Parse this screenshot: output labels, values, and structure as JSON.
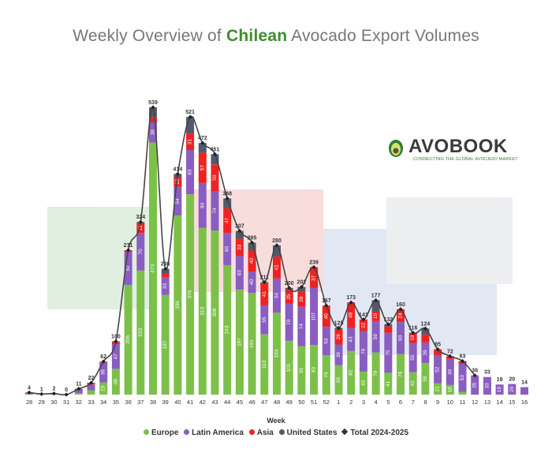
{
  "title": {
    "prefix": "Weekly Overview of ",
    "highlight": "Chilean",
    "suffix": " Avocado Export Volumes"
  },
  "logo": {
    "brand": "AVOBOOK",
    "tagline": "CONNECTING THE GLOBAL AVOCADO MARKET"
  },
  "colors": {
    "europe": "#7cc04a",
    "latin_america": "#8a5dc0",
    "asia": "#ee2222",
    "united_states": "#4f5a6e",
    "total": "#444444"
  },
  "chart_data": {
    "type": "bar",
    "stacked": true,
    "xlabel": "Week",
    "categories": [
      "28",
      "29",
      "30",
      "31",
      "32",
      "33",
      "34",
      "35",
      "36",
      "37",
      "38",
      "39",
      "40",
      "41",
      "42",
      "43",
      "44",
      "45",
      "46",
      "47",
      "48",
      "49",
      "50",
      "51",
      "52",
      "1",
      "2",
      "3",
      "4",
      "5",
      "6",
      "7",
      "8",
      "9",
      "10",
      "11",
      "12",
      "13",
      "14",
      "15",
      "16"
    ],
    "totals": [
      4,
      1,
      2,
      0,
      11,
      22,
      62,
      100,
      271,
      324,
      539,
      236,
      414,
      521,
      472,
      451,
      368,
      307,
      285,
      211,
      280,
      200,
      202,
      239,
      167,
      125,
      173,
      141,
      177,
      132,
      160,
      116,
      124,
      85,
      72,
      63,
      36,
      33,
      19,
      20,
      14
    ],
    "series": [
      {
        "name": "Europe",
        "key": "europe",
        "values": [
          1,
          0,
          1,
          0,
          3,
          8,
          23,
          48,
          206,
          233,
          473,
          187,
          336,
          376,
          313,
          308,
          243,
          197,
          191,
          113,
          154,
          101,
          91,
          93,
          74,
          55,
          82,
          43,
          79,
          41,
          76,
          42,
          59,
          21,
          18,
          5,
          0,
          0,
          0,
          0,
          0
        ]
      },
      {
        "name": "Latin America",
        "key": "latin_america",
        "values": [
          2,
          1,
          1,
          0,
          6,
          11,
          38,
          47,
          62,
          70,
          38,
          33,
          54,
          83,
          84,
          74,
          60,
          63,
          40,
          55,
          64,
          70,
          74,
          107,
          53,
          39,
          43,
          76,
          59,
          75,
          60,
          55,
          39,
          52,
          49,
          53,
          35,
          33,
          19,
          20,
          14
        ]
      },
      {
        "name": "Asia",
        "key": "asia",
        "values": [
          1,
          0,
          0,
          0,
          2,
          3,
          1,
          5,
          3,
          19,
          10,
          8,
          18,
          31,
          57,
          50,
          47,
          33,
          40,
          41,
          41,
          25,
          28,
          37,
          40,
          29,
          48,
          22,
          19,
          12,
          24,
          19,
          15,
          12,
          5,
          5,
          1,
          0,
          0,
          0,
          0
        ]
      },
      {
        "name": "United States",
        "key": "united_states",
        "values": [
          0,
          0,
          0,
          0,
          0,
          0,
          0,
          0,
          0,
          2,
          18,
          8,
          6,
          31,
          18,
          19,
          18,
          14,
          14,
          2,
          21,
          4,
          9,
          2,
          0,
          2,
          0,
          0,
          20,
          4,
          0,
          0,
          11,
          0,
          0,
          0,
          0,
          0,
          0,
          0,
          0
        ]
      }
    ],
    "segment_labels": {
      "europe": [
        null,
        null,
        null,
        null,
        null,
        null,
        "23",
        "48",
        "206",
        "233",
        "473",
        "187",
        "336",
        "376",
        "313",
        "308",
        "243",
        "197",
        "191",
        "113",
        "154",
        "101",
        "91",
        "93",
        "74",
        "55",
        "82",
        "43",
        "79",
        "41",
        "76",
        "42",
        "59",
        "21",
        "18",
        null,
        null,
        null,
        null,
        null,
        null
      ],
      "latin_america": [
        null,
        null,
        null,
        null,
        null,
        null,
        "38",
        "47",
        "62",
        "70",
        "38",
        "33",
        "54",
        "83",
        "84",
        "74",
        "60",
        "63",
        "40",
        "55",
        "64",
        "70",
        "74",
        "107",
        "53",
        "39",
        "43",
        "76",
        "59",
        "75",
        "60",
        "55",
        "39",
        "52",
        "49",
        "53",
        "35",
        "33",
        "19",
        "20",
        null
      ],
      "asia": [
        null,
        null,
        null,
        null,
        null,
        null,
        null,
        null,
        null,
        "19",
        null,
        null,
        "18",
        "31",
        "57",
        "50",
        "47",
        "33",
        "40",
        "41",
        "41",
        "25",
        "28",
        "37",
        "40",
        "29",
        "48",
        "22",
        "19",
        "12",
        "24",
        "19",
        "15",
        "12",
        null,
        null,
        null,
        null,
        null,
        null,
        null
      ],
      "united_states": []
    },
    "line": {
      "name": "Total 2024-2025",
      "values": [
        4,
        1,
        2,
        0,
        11,
        22,
        62,
        100,
        271,
        324,
        539,
        236,
        414,
        521,
        472,
        451,
        368,
        307,
        285,
        211,
        280,
        200,
        202,
        239,
        167,
        125,
        173,
        141,
        177,
        132,
        160,
        116,
        124,
        85,
        72,
        63,
        36,
        null,
        null,
        null,
        null
      ]
    },
    "line_smoothing_note": "",
    "legend": {
      "position": "bottom",
      "entries": [
        "Europe",
        "Latin America",
        "Asia",
        "United States",
        "Total 2024-2025"
      ]
    },
    "ylim": [
      0,
      560
    ],
    "grid": false
  }
}
